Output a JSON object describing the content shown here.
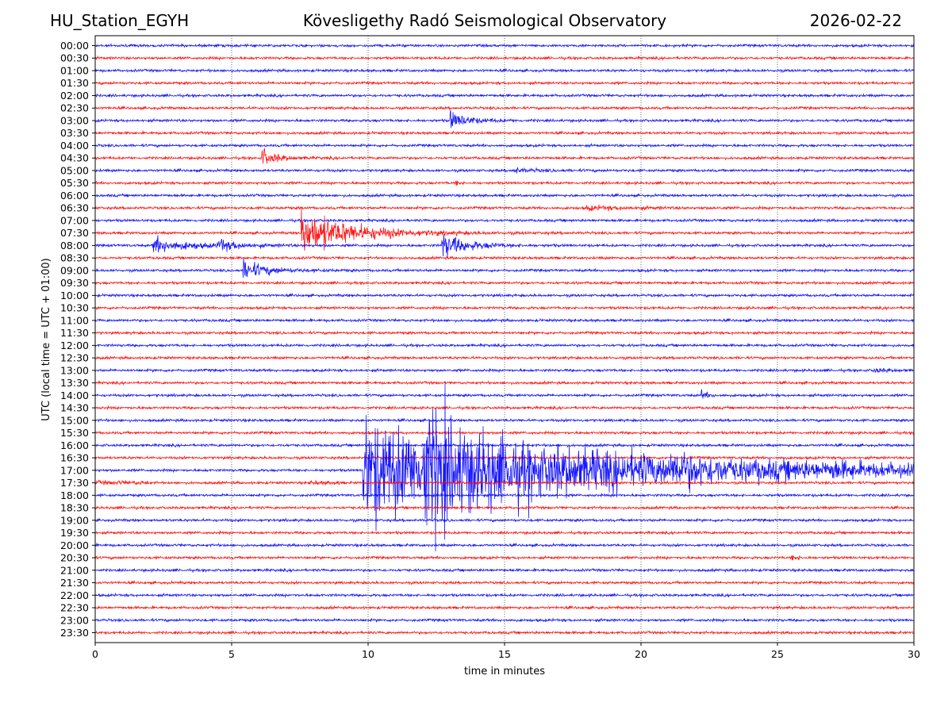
{
  "header": {
    "station": "HU_Station_EGYH",
    "observatory": "Kövesligethy Radó Seismological Observatory",
    "date": "2026-02-22"
  },
  "chart_data": {
    "type": "line",
    "title": "Kövesligethy Radó Seismological Observatory",
    "xlabel": "time in minutes",
    "ylabel": "UTC (local time = UTC + 01:00)",
    "xlim": [
      0,
      30
    ],
    "xticks": [
      "0",
      "5",
      "10",
      "15",
      "20",
      "25",
      "30"
    ],
    "grid": "vertical dotted at x ticks",
    "row_colors": [
      "#0000ff",
      "#ff0000"
    ],
    "rows": [
      "00:00",
      "00:30",
      "01:00",
      "01:30",
      "02:00",
      "02:30",
      "03:00",
      "03:30",
      "04:00",
      "04:30",
      "05:00",
      "05:30",
      "06:00",
      "06:30",
      "07:00",
      "07:30",
      "08:00",
      "08:30",
      "09:00",
      "09:30",
      "10:00",
      "10:30",
      "11:00",
      "11:30",
      "12:00",
      "12:30",
      "13:00",
      "13:30",
      "14:00",
      "14:30",
      "15:00",
      "15:30",
      "16:00",
      "16:30",
      "17:00",
      "17:30",
      "18:00",
      "18:30",
      "19:00",
      "19:30",
      "20:00",
      "20:30",
      "21:00",
      "21:30",
      "22:00",
      "22:30",
      "23:00",
      "23:30"
    ],
    "events": [
      {
        "row": "03:00",
        "start_min": 13.0,
        "amplitude_rows": 0.9,
        "duration_min": 1.6
      },
      {
        "row": "04:30",
        "start_min": 6.1,
        "amplitude_rows": 0.9,
        "duration_min": 1.2
      },
      {
        "row": "05:00",
        "start_min": 15.3,
        "amplitude_rows": 0.25,
        "duration_min": 1.8
      },
      {
        "row": "05:30",
        "start_min": 13.2,
        "amplitude_rows": 0.4,
        "duration_min": 0.2
      },
      {
        "row": "06:30",
        "start_min": 18.0,
        "amplitude_rows": 0.2,
        "duration_min": 4.0
      },
      {
        "row": "07:30",
        "start_min": 7.55,
        "amplitude_rows": 2.4,
        "duration_min": 4.0
      },
      {
        "row": "08:00",
        "start_min": 2.1,
        "amplitude_rows": 0.8,
        "duration_min": 3.0
      },
      {
        "row": "08:00",
        "start_min": 4.5,
        "amplitude_rows": 0.6,
        "duration_min": 1.5
      },
      {
        "row": "08:00",
        "start_min": 12.7,
        "amplitude_rows": 1.3,
        "duration_min": 2.0
      },
      {
        "row": "09:00",
        "start_min": 5.4,
        "amplitude_rows": 1.0,
        "duration_min": 2.0
      },
      {
        "row": "13:00",
        "start_min": 28.5,
        "amplitude_rows": 0.2,
        "duration_min": 1.5
      },
      {
        "row": "14:00",
        "start_min": 22.2,
        "amplitude_rows": 0.4,
        "duration_min": 0.6
      },
      {
        "row": "17:00",
        "start_min": 9.8,
        "amplitude_rows": 5.5,
        "duration_min": 20.0
      },
      {
        "row": "17:00",
        "start_min": 12.0,
        "amplitude_rows": 3.2,
        "duration_min": 3.5
      },
      {
        "row": "17:00",
        "start_min": 21.2,
        "amplitude_rows": 1.0,
        "duration_min": 1.5
      },
      {
        "row": "17:00",
        "start_min": 27.0,
        "amplitude_rows": 0.5,
        "duration_min": 1.0
      },
      {
        "row": "20:30",
        "start_min": 25.5,
        "amplitude_rows": 0.3,
        "duration_min": 0.5
      }
    ]
  }
}
